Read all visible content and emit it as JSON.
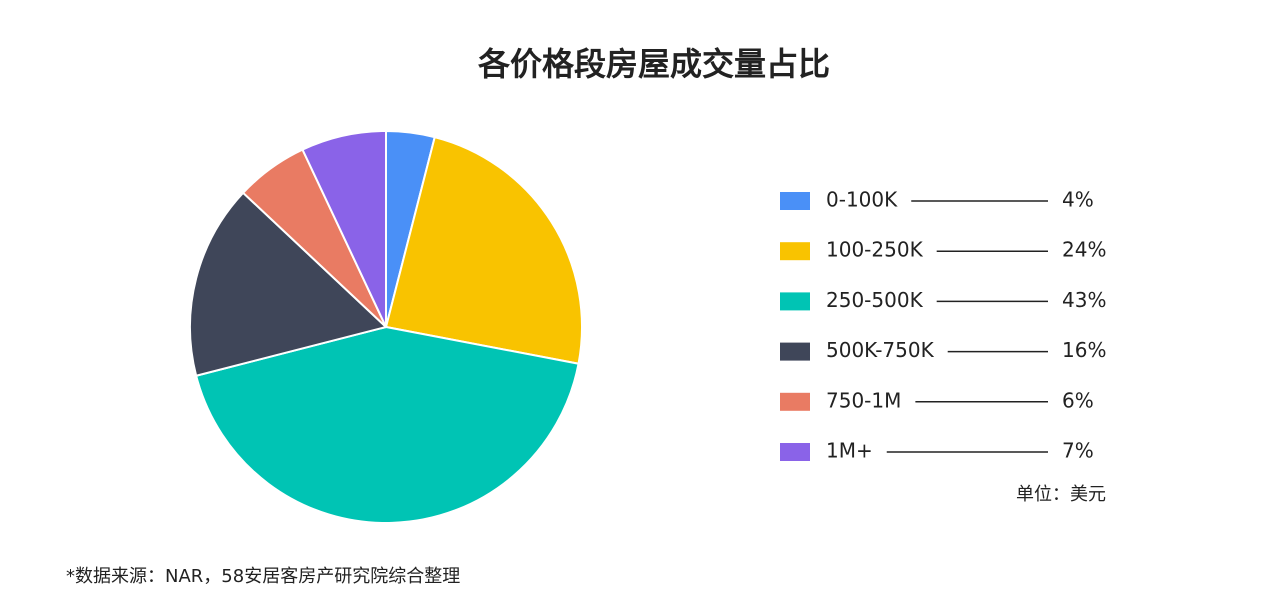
{
  "chart_data": {
    "type": "pie",
    "title": "各价格段房屋成交量占比",
    "categories": [
      "0-100K",
      "100-250K",
      "250-500K",
      "500K-750K",
      "750-1M",
      "1M+"
    ],
    "values": [
      4,
      24,
      43,
      16,
      6,
      7
    ],
    "value_labels": [
      "4%",
      "24%",
      "43%",
      "16%",
      "6%",
      "7%"
    ],
    "colors": [
      "#4a90f7",
      "#f9c300",
      "#00c4b4",
      "#3f4659",
      "#e97b63",
      "#8a63e8"
    ],
    "unit_note": "单位：美元",
    "source": "*数据来源：NAR，58安居客房产研究院综合整理"
  }
}
